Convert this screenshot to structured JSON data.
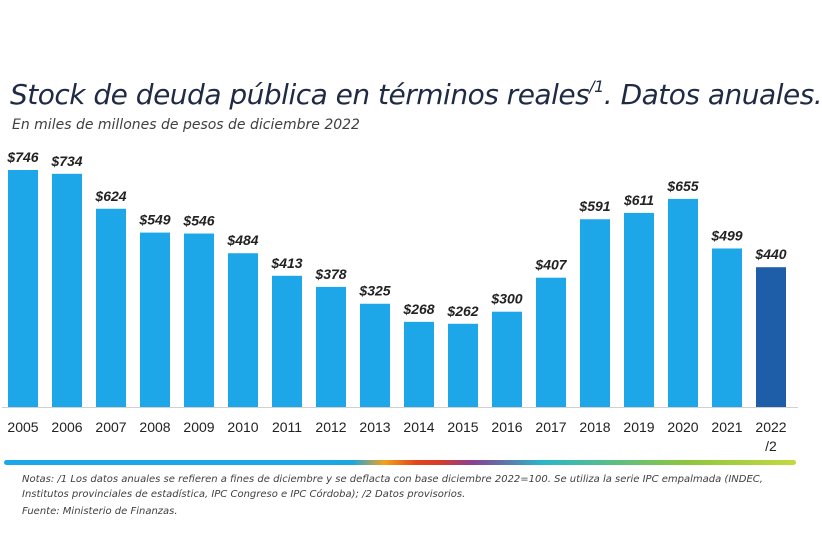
{
  "header": {
    "title": "Stock de deuda pública en términos reales",
    "title_sup": "/1",
    "title_end": ". Datos anuales.",
    "subtitle": "En miles de millones de pesos de diciembre 2022"
  },
  "chart_data": {
    "type": "bar",
    "title": "Stock de deuda pública en términos reales/1. Datos anuales.",
    "subtitle": "En miles de millones de pesos de diciembre 2022",
    "categories": [
      "2005",
      "2006",
      "2007",
      "2008",
      "2009",
      "2010",
      "2011",
      "2012",
      "2013",
      "2014",
      "2015",
      "2016",
      "2017",
      "2018",
      "2019",
      "2020",
      "2021",
      "2022"
    ],
    "category_notes": {
      "2022": "/2"
    },
    "values": [
      746,
      734,
      624,
      549,
      546,
      484,
      413,
      378,
      325,
      268,
      262,
      300,
      407,
      591,
      611,
      655,
      499,
      440
    ],
    "data_labels": [
      "$746",
      "$734",
      "$624",
      "$549",
      "$546",
      "$484",
      "$413",
      "$378",
      "$325",
      "$268",
      "$262",
      "$300",
      "$407",
      "$591",
      "$611",
      "$655",
      "$499",
      "$440"
    ],
    "ylim": [
      0,
      746
    ],
    "grid": false,
    "colors": {
      "bar": "#1ea7e8",
      "highlight": "#1e5ea8",
      "baseline": "#d0d0d0"
    },
    "highlight_index": 17
  },
  "footer": {
    "notes": "Notas: /1 Los datos anuales se refieren a fines de diciembre y se deflacta con base diciembre 2022=100. Se utiliza la serie IPC empalmada (INDEC, Institutos provinciales de estadística, IPC Congreso e IPC Córdoba); /2 Datos provisorios.",
    "source": "Fuente: Ministerio de Finanzas."
  }
}
